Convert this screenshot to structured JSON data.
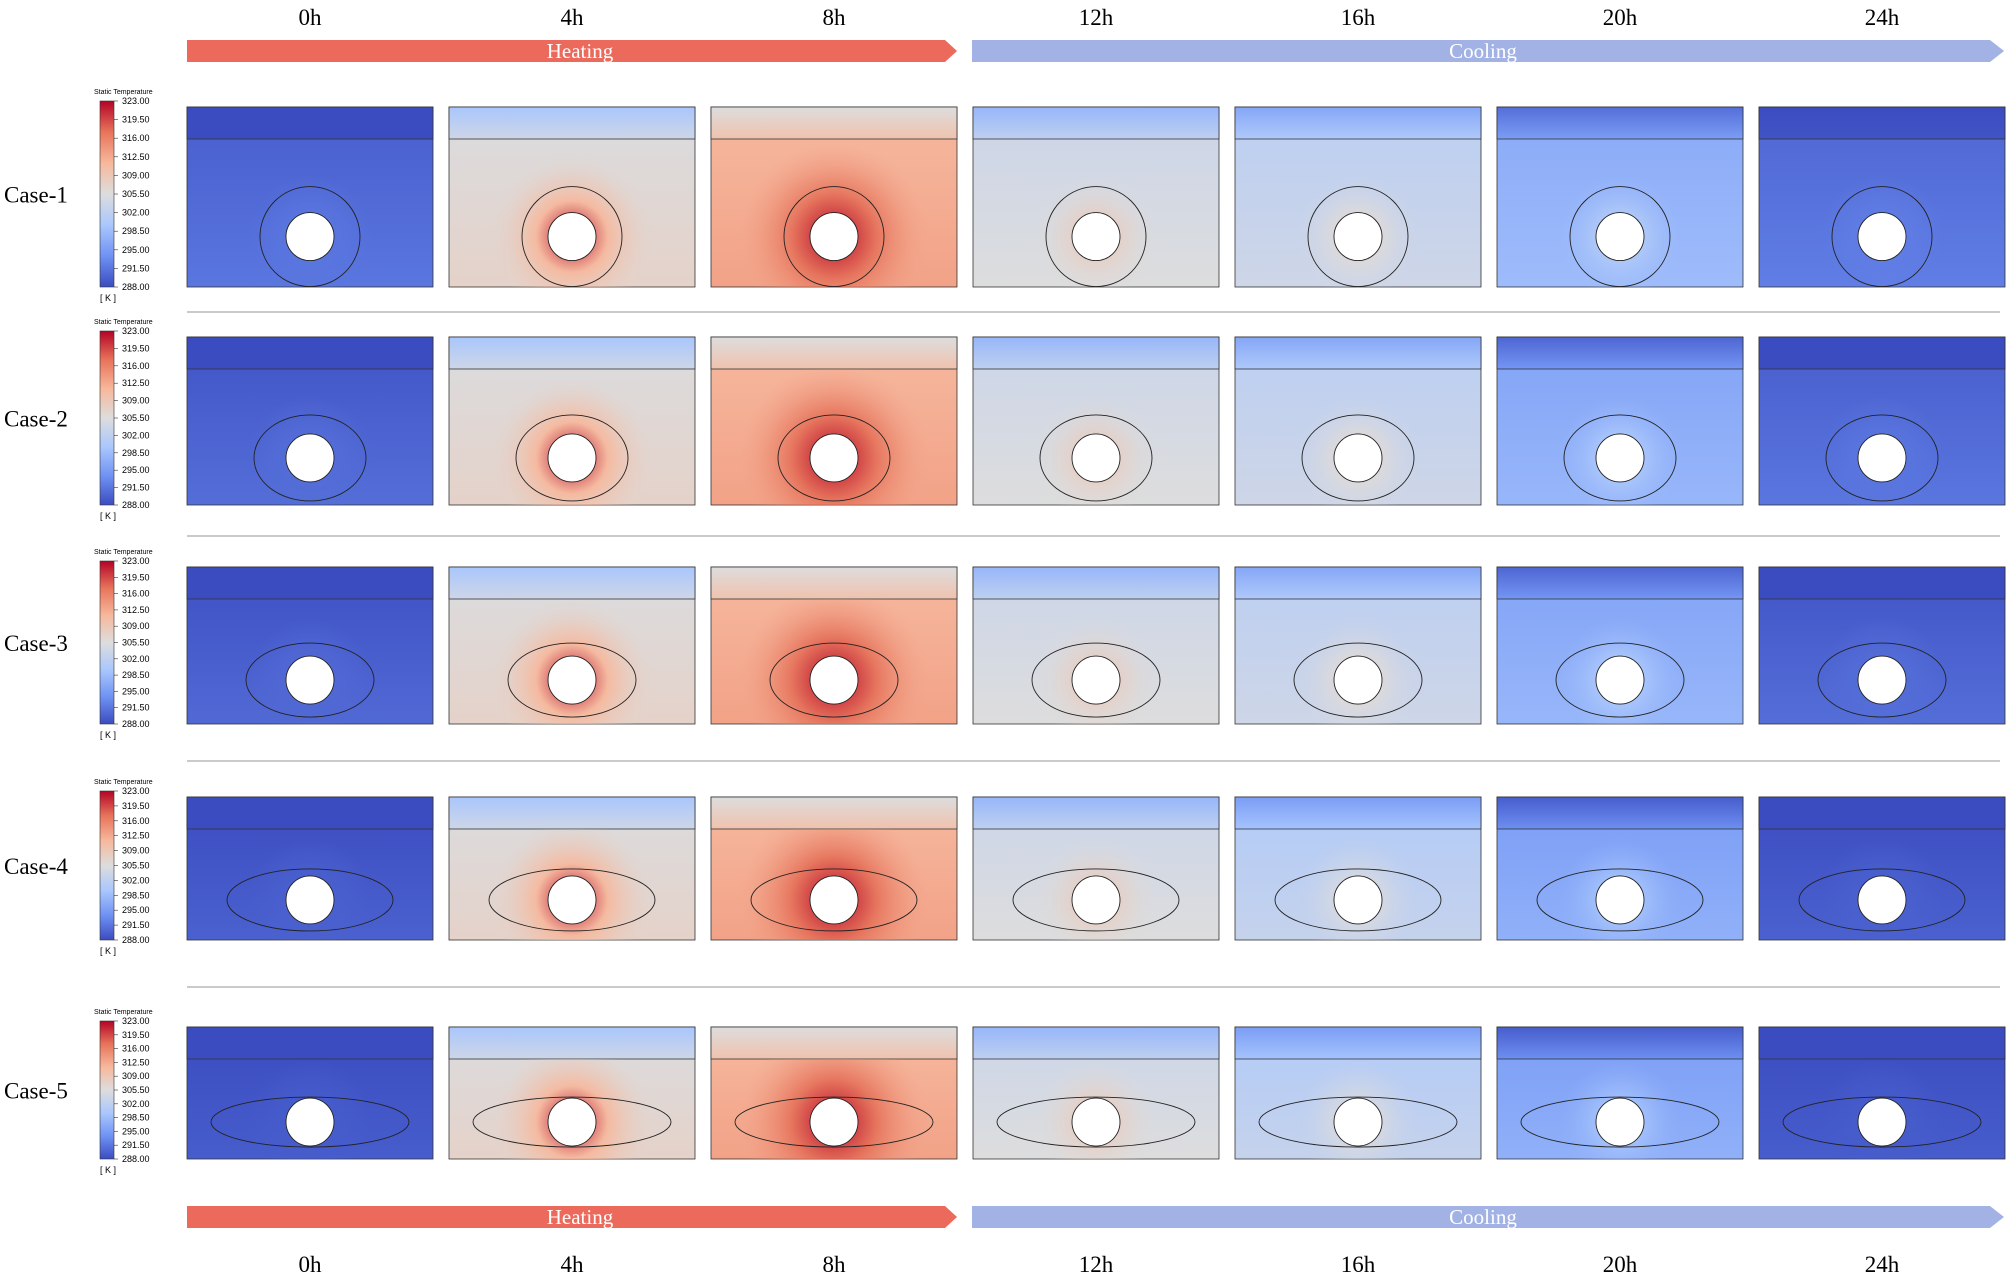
{
  "times": [
    "0h",
    "4h",
    "8h",
    "12h",
    "16h",
    "20h",
    "24h"
  ],
  "phases": {
    "heating": "Heating",
    "cooling": "Cooling",
    "heating_color": "#ec6a5c",
    "cooling_color": "#a2b2e5"
  },
  "colorbar": {
    "title": "Static Temperature",
    "ticks": [
      "323.00",
      "319.50",
      "316.00",
      "312.50",
      "309.00",
      "305.50",
      "302.00",
      "298.50",
      "295.00",
      "291.50",
      "288.00"
    ],
    "unit": "[ K ]",
    "colors": [
      "#3b4cc0",
      "#6f92f3",
      "#aac7fd",
      "#dddddd",
      "#f7b89c",
      "#e7745b",
      "#b40426"
    ]
  },
  "cases": [
    {
      "label": "Case-1",
      "ellipse": "circle",
      "levels": [
        0.1,
        0.55,
        0.72,
        0.5,
        0.45,
        0.3,
        0.12
      ]
    },
    {
      "label": "Case-2",
      "ellipse": "wide-1",
      "levels": [
        0.08,
        0.55,
        0.72,
        0.5,
        0.45,
        0.28,
        0.1
      ]
    },
    {
      "label": "Case-3",
      "ellipse": "wide-2",
      "levels": [
        0.07,
        0.55,
        0.72,
        0.5,
        0.45,
        0.28,
        0.08
      ]
    },
    {
      "label": "Case-4",
      "ellipse": "wide-3",
      "levels": [
        0.05,
        0.55,
        0.72,
        0.5,
        0.42,
        0.26,
        0.05
      ]
    },
    {
      "label": "Case-5",
      "ellipse": "wide-4",
      "levels": [
        0.04,
        0.55,
        0.72,
        0.5,
        0.42,
        0.26,
        0.04
      ]
    }
  ]
}
